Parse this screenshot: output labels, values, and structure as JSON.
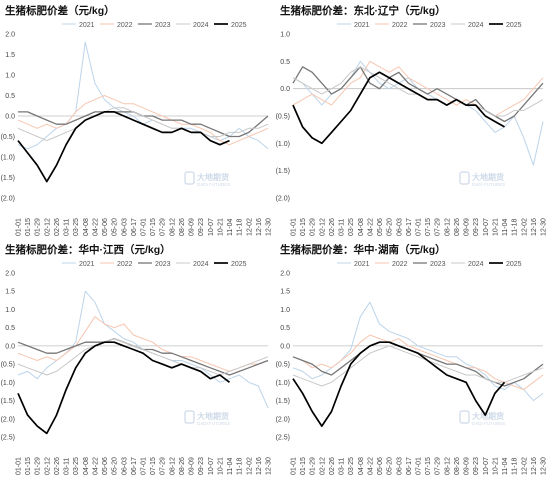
{
  "chart_data": [
    {
      "type": "line",
      "title": "生猪标肥价差（元/kg）",
      "xlabel": "",
      "ylabel": "",
      "ylim": [
        -2.0,
        2.0
      ],
      "y_tick_labels": [
        "2.0",
        "1.5",
        "1.0",
        "0.5",
        "0.0",
        "(0.5)",
        "(1.0)",
        "(1.5)",
        "(2.0)"
      ],
      "x_tick_labels": [
        "01-01",
        "01-15",
        "01-29",
        "02-12",
        "02-26",
        "03-11",
        "03-25",
        "04-08",
        "04-22",
        "05-06",
        "05-20",
        "06-03",
        "06-17",
        "07-01",
        "07-15",
        "07-29",
        "08-12",
        "08-26",
        "09-09",
        "09-23",
        "10-07",
        "10-21",
        "11-04",
        "11-18",
        "12-02",
        "12-16",
        "12-30"
      ],
      "grid": false,
      "legend_position": "top",
      "colors": {
        "2021": "#bcd4ea",
        "2022": "#f7c6b0",
        "2023": "#777777",
        "2024": "#c8c8c8",
        "2025": "#000000"
      },
      "series": [
        {
          "name": "2021",
          "values": [
            -0.7,
            -0.8,
            -0.7,
            -0.5,
            -0.3,
            -0.2,
            0.1,
            1.8,
            0.8,
            0.4,
            0.2,
            0.1,
            0.0,
            -0.2,
            -0.1,
            -0.2,
            -0.3,
            -0.3,
            -0.3,
            -0.4,
            -0.5,
            -0.6,
            -0.5,
            -0.3,
            -0.5,
            -0.6,
            -0.8
          ]
        },
        {
          "name": "2022",
          "values": [
            -0.1,
            -0.2,
            -0.3,
            -0.2,
            -0.3,
            -0.2,
            0.1,
            0.3,
            0.4,
            0.5,
            0.4,
            0.3,
            0.3,
            0.2,
            0.1,
            0.0,
            -0.1,
            -0.2,
            -0.2,
            -0.3,
            -0.4,
            -0.6,
            -0.7,
            -0.6,
            -0.5,
            -0.4,
            -0.3
          ]
        },
        {
          "name": "2023",
          "values": [
            0.1,
            0.1,
            0.0,
            -0.1,
            -0.2,
            -0.2,
            -0.1,
            0.0,
            0.1,
            0.1,
            0.1,
            0.1,
            0.1,
            0.0,
            0.0,
            -0.1,
            -0.1,
            -0.1,
            -0.2,
            -0.2,
            -0.3,
            -0.4,
            -0.5,
            -0.5,
            -0.4,
            -0.2,
            0.0
          ]
        },
        {
          "name": "2024",
          "values": [
            -0.3,
            -0.4,
            -0.5,
            -0.6,
            -0.5,
            -0.4,
            -0.3,
            -0.1,
            0.0,
            0.1,
            0.2,
            0.2,
            0.1,
            0.0,
            -0.1,
            -0.2,
            -0.3,
            -0.3,
            -0.4,
            -0.4,
            -0.5,
            -0.5,
            -0.4,
            -0.4,
            -0.3,
            -0.3,
            -0.2
          ]
        },
        {
          "name": "2025",
          "values": [
            -0.6,
            -0.9,
            -1.2,
            -1.6,
            -1.2,
            -0.7,
            -0.3,
            -0.1,
            0.0,
            0.1,
            0.1,
            0.0,
            -0.1,
            -0.2,
            -0.3,
            -0.4,
            -0.4,
            -0.3,
            -0.4,
            -0.4,
            -0.6,
            -0.7,
            -0.6,
            null,
            null,
            null,
            null
          ]
        }
      ]
    },
    {
      "type": "line",
      "title": "生猪标肥价差：东北·辽宁（元/kg）",
      "xlabel": "",
      "ylabel": "",
      "ylim": [
        -2.0,
        1.0
      ],
      "y_tick_labels": [
        "1.0",
        "0.5",
        "0.0",
        "(0.5)",
        "(1.0)",
        "(1.5)",
        "(2.0)"
      ],
      "x_tick_labels": [
        "01-01",
        "01-15",
        "01-29",
        "02-12",
        "02-26",
        "03-11",
        "03-25",
        "04-08",
        "04-22",
        "05-06",
        "05-20",
        "06-03",
        "06-17",
        "07-01",
        "07-15",
        "07-29",
        "08-12",
        "08-26",
        "09-09",
        "09-23",
        "10-07",
        "10-21",
        "11-04",
        "11-18",
        "12-02",
        "12-16",
        "12-30"
      ],
      "grid": false,
      "legend_position": "top",
      "colors": {
        "2021": "#bcd4ea",
        "2022": "#f7c6b0",
        "2023": "#777777",
        "2024": "#c8c8c8",
        "2025": "#000000"
      },
      "series": [
        {
          "name": "2021",
          "values": [
            0.2,
            0.1,
            -0.1,
            -0.3,
            -0.1,
            0.0,
            0.2,
            0.5,
            0.3,
            0.1,
            0.0,
            0.1,
            0.2,
            0.0,
            -0.1,
            -0.2,
            -0.3,
            -0.2,
            -0.3,
            -0.4,
            -0.6,
            -0.8,
            -0.7,
            -0.5,
            -0.9,
            -1.4,
            -0.6
          ]
        },
        {
          "name": "2022",
          "values": [
            -0.3,
            -0.2,
            -0.1,
            -0.2,
            -0.3,
            -0.1,
            0.1,
            0.2,
            0.5,
            0.4,
            0.3,
            0.4,
            0.2,
            0.1,
            0.0,
            -0.1,
            -0.2,
            -0.3,
            -0.2,
            -0.3,
            -0.4,
            -0.5,
            -0.4,
            -0.3,
            -0.2,
            0.0,
            0.2
          ]
        },
        {
          "name": "2023",
          "values": [
            0.1,
            0.4,
            0.3,
            0.1,
            -0.1,
            0.0,
            0.2,
            0.4,
            0.1,
            0.0,
            0.2,
            0.3,
            0.1,
            0.0,
            -0.1,
            0.0,
            -0.1,
            -0.2,
            -0.3,
            -0.2,
            -0.4,
            -0.5,
            -0.6,
            -0.5,
            -0.3,
            -0.1,
            0.1
          ]
        },
        {
          "name": "2024",
          "values": [
            0.2,
            0.1,
            0.0,
            -0.1,
            0.0,
            0.1,
            0.3,
            0.4,
            0.3,
            0.2,
            0.1,
            0.0,
            -0.1,
            -0.1,
            -0.2,
            -0.2,
            -0.3,
            -0.2,
            -0.3,
            -0.3,
            -0.4,
            -0.5,
            -0.5,
            -0.4,
            -0.4,
            -0.3,
            -0.2
          ]
        },
        {
          "name": "2025",
          "values": [
            -0.3,
            -0.7,
            -0.9,
            -1.0,
            -0.8,
            -0.6,
            -0.4,
            -0.1,
            0.2,
            0.3,
            0.2,
            0.1,
            0.0,
            -0.1,
            -0.2,
            -0.2,
            -0.3,
            -0.2,
            -0.3,
            -0.3,
            -0.5,
            -0.6,
            -0.7,
            null,
            null,
            null,
            null
          ]
        }
      ]
    },
    {
      "type": "line",
      "title": "生猪标肥价差：华中·江西（元/kg）",
      "xlabel": "",
      "ylabel": "",
      "ylim": [
        -2.5,
        2.0
      ],
      "y_tick_labels": [
        "2.0",
        "1.5",
        "1.0",
        "0.5",
        "0.0",
        "(0.5)",
        "(1.0)",
        "(1.5)",
        "(2.0)",
        "(2.5)"
      ],
      "x_tick_labels": [
        "01-01",
        "01-15",
        "01-29",
        "02-12",
        "02-26",
        "03-11",
        "03-25",
        "04-08",
        "04-22",
        "05-06",
        "05-20",
        "06-03",
        "06-17",
        "07-01",
        "07-15",
        "07-29",
        "08-12",
        "08-26",
        "09-09",
        "09-23",
        "10-07",
        "10-21",
        "11-04",
        "11-18",
        "12-02",
        "12-16",
        "12-30"
      ],
      "grid": false,
      "legend_position": "top",
      "colors": {
        "2021": "#bcd4ea",
        "2022": "#f7c6b0",
        "2023": "#777777",
        "2024": "#c8c8c8",
        "2025": "#000000"
      },
      "series": [
        {
          "name": "2021",
          "values": [
            -0.8,
            -0.7,
            -0.9,
            -0.6,
            -0.4,
            -0.2,
            0.1,
            1.5,
            1.2,
            0.6,
            0.4,
            0.2,
            0.1,
            -0.1,
            -0.2,
            -0.3,
            -0.4,
            -0.4,
            -0.5,
            -0.6,
            -0.8,
            -1.0,
            -0.9,
            -0.8,
            -1.0,
            -1.1,
            -1.7
          ]
        },
        {
          "name": "2022",
          "values": [
            -0.2,
            -0.3,
            -0.4,
            -0.3,
            -0.4,
            -0.2,
            0.0,
            0.4,
            0.8,
            0.6,
            0.5,
            0.6,
            0.3,
            0.2,
            0.1,
            -0.1,
            -0.2,
            -0.3,
            -0.3,
            -0.4,
            -0.5,
            -0.6,
            -0.7,
            -0.6,
            -0.5,
            -0.5,
            -0.4
          ]
        },
        {
          "name": "2023",
          "values": [
            0.1,
            0.0,
            -0.1,
            -0.2,
            -0.2,
            -0.1,
            0.0,
            0.1,
            0.1,
            0.1,
            0.2,
            0.1,
            0.0,
            -0.1,
            -0.1,
            -0.2,
            -0.2,
            -0.3,
            -0.4,
            -0.5,
            -0.6,
            -0.7,
            -0.8,
            -0.7,
            -0.6,
            -0.5,
            -0.4
          ]
        },
        {
          "name": "2024",
          "values": [
            -0.5,
            -0.6,
            -0.7,
            -0.8,
            -0.7,
            -0.5,
            -0.3,
            -0.1,
            0.0,
            0.1,
            0.2,
            0.1,
            0.0,
            -0.1,
            -0.2,
            -0.3,
            -0.4,
            -0.5,
            -0.6,
            -0.6,
            -0.7,
            -0.8,
            -0.7,
            -0.6,
            -0.5,
            -0.4,
            -0.3
          ]
        },
        {
          "name": "2025",
          "values": [
            -1.3,
            -1.9,
            -2.2,
            -2.4,
            -1.9,
            -1.2,
            -0.6,
            -0.2,
            0.0,
            0.1,
            0.1,
            0.0,
            -0.1,
            -0.2,
            -0.4,
            -0.5,
            -0.6,
            -0.5,
            -0.6,
            -0.7,
            -0.9,
            -0.8,
            -1.0,
            null,
            null,
            null,
            null
          ]
        }
      ]
    },
    {
      "type": "line",
      "title": "生猪标肥价差：华中·湖南（元/kg）",
      "xlabel": "",
      "ylabel": "",
      "ylim": [
        -2.5,
        2.0
      ],
      "y_tick_labels": [
        "2.0",
        "1.5",
        "1.0",
        "0.5",
        "0.0",
        "(0.5)",
        "(1.0)",
        "(1.5)",
        "(2.0)",
        "(2.5)"
      ],
      "x_tick_labels": [
        "01-01",
        "01-15",
        "01-29",
        "02-12",
        "02-26",
        "03-11",
        "03-25",
        "04-08",
        "04-22",
        "05-06",
        "05-20",
        "06-03",
        "06-17",
        "07-01",
        "07-15",
        "07-29",
        "08-12",
        "08-26",
        "09-09",
        "09-23",
        "10-07",
        "10-21",
        "11-04",
        "11-18",
        "12-02",
        "12-16",
        "12-30"
      ],
      "grid": false,
      "legend_position": "top",
      "colors": {
        "2021": "#bcd4ea",
        "2022": "#f7c6b0",
        "2023": "#777777",
        "2024": "#c8c8c8",
        "2025": "#000000"
      },
      "series": [
        {
          "name": "2021",
          "values": [
            -0.6,
            -0.7,
            -0.9,
            -0.8,
            -0.6,
            -0.4,
            -0.1,
            0.8,
            1.2,
            0.6,
            0.4,
            0.3,
            0.2,
            0.0,
            -0.1,
            -0.2,
            -0.3,
            -0.3,
            -0.5,
            -0.6,
            -0.8,
            -1.1,
            -1.2,
            -1.0,
            -1.2,
            -1.5,
            -1.3
          ]
        },
        {
          "name": "2022",
          "values": [
            -0.3,
            -0.4,
            -0.6,
            -0.5,
            -0.6,
            -0.4,
            -0.2,
            0.1,
            0.3,
            0.2,
            0.1,
            0.2,
            0.0,
            -0.1,
            -0.2,
            -0.3,
            -0.4,
            -0.5,
            -0.6,
            -0.6,
            -0.7,
            -0.9,
            -1.0,
            -1.1,
            -1.2,
            -1.0,
            -0.8
          ]
        },
        {
          "name": "2023",
          "values": [
            -0.3,
            -0.4,
            -0.5,
            -0.7,
            -0.8,
            -0.6,
            -0.4,
            -0.2,
            0.0,
            0.1,
            0.1,
            0.0,
            -0.1,
            -0.2,
            -0.3,
            -0.4,
            -0.5,
            -0.5,
            -0.6,
            -0.7,
            -0.9,
            -1.0,
            -1.1,
            -1.0,
            -0.9,
            -0.7,
            -0.5
          ]
        },
        {
          "name": "2024",
          "values": [
            -0.8,
            -0.9,
            -1.0,
            -1.1,
            -1.0,
            -0.8,
            -0.6,
            -0.4,
            -0.2,
            -0.1,
            0.0,
            -0.1,
            -0.2,
            -0.3,
            -0.4,
            -0.5,
            -0.6,
            -0.7,
            -0.8,
            -0.8,
            -0.9,
            -1.0,
            -1.0,
            -0.9,
            -0.8,
            -0.7,
            -0.6
          ]
        },
        {
          "name": "2025",
          "values": [
            -0.9,
            -1.3,
            -1.8,
            -2.2,
            -1.8,
            -1.1,
            -0.5,
            -0.2,
            0.0,
            0.1,
            0.1,
            0.0,
            -0.1,
            -0.2,
            -0.4,
            -0.6,
            -0.8,
            -0.9,
            -1.0,
            -1.5,
            -1.9,
            -1.3,
            -1.0,
            null,
            null,
            null,
            null
          ]
        }
      ]
    }
  ],
  "watermark": {
    "name": "大地期货",
    "sub": "DADI FUTURES"
  }
}
